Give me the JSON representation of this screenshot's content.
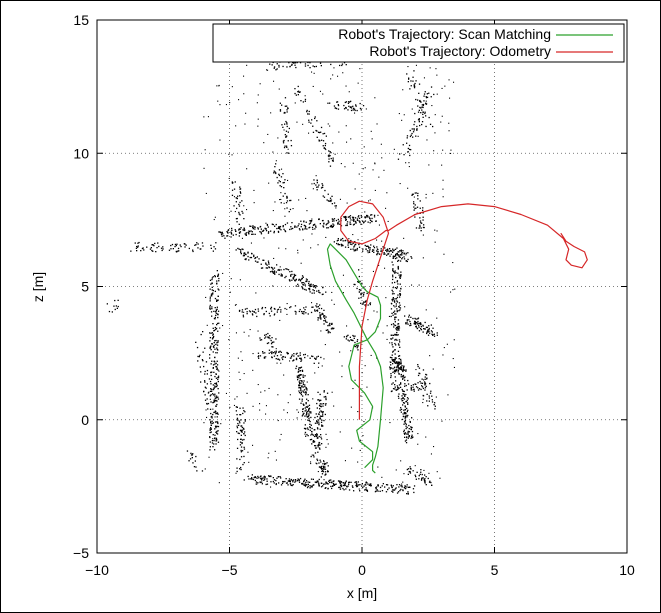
{
  "chart_data": {
    "type": "line",
    "title": "",
    "xlabel": "x [m]",
    "ylabel": "z [m]",
    "xlim": [
      -10,
      10
    ],
    "ylim": [
      -5,
      15
    ],
    "xticks": [
      "−10",
      "−5",
      "0",
      "5",
      "10"
    ],
    "yticks": [
      "−5",
      "0",
      "5",
      "10",
      "15"
    ],
    "xtick_values": [
      -10,
      -5,
      0,
      5,
      10
    ],
    "ytick_values": [
      -5,
      0,
      5,
      10,
      15
    ],
    "grid": true,
    "legend_position": "top-right",
    "series": [
      {
        "name": "Robot's Trajectory: Scan Matching",
        "color": "#2ca02c",
        "x": [
          0.1,
          0.4,
          0.4,
          -0.1,
          -0.2,
          0.3,
          0.4,
          0.1,
          -0.1,
          -0.4,
          -0.5,
          -0.3,
          0.2,
          0.5,
          0.7,
          0.7,
          0.6,
          0.2,
          0.0,
          -0.3,
          -0.6,
          -1.0,
          -1.2,
          -1.3,
          -1.2,
          -1.0,
          -0.6,
          -0.3,
          0.2,
          0.5,
          0.7,
          0.8,
          0.7,
          0.6,
          0.5,
          0.4,
          0.4,
          0.5
        ],
        "y": [
          -1.8,
          -1.5,
          -1.2,
          -0.8,
          -0.4,
          0.0,
          0.5,
          1.0,
          1.2,
          1.5,
          2.0,
          2.8,
          3.0,
          3.3,
          3.8,
          4.3,
          4.6,
          4.8,
          5.0,
          5.5,
          6.0,
          6.4,
          6.6,
          6.4,
          5.8,
          5.2,
          4.5,
          4.0,
          3.0,
          2.5,
          2.0,
          1.2,
          0.0,
          -1.0,
          -1.4,
          -1.7,
          -1.9,
          -2.0
        ]
      },
      {
        "name": "Robot's Trajectory: Odometry",
        "color": "#d62728",
        "x": [
          -0.1,
          -0.1,
          0.0,
          0.2,
          0.4,
          0.6,
          0.8,
          1.0,
          0.8,
          0.4,
          -0.1,
          -0.5,
          -0.8,
          -0.8,
          -0.5,
          0.0,
          0.5,
          0.9,
          1.0,
          1.3,
          2.0,
          3.0,
          4.0,
          5.0,
          6.0,
          7.0,
          7.6,
          7.8,
          7.7,
          7.9,
          8.3,
          8.5,
          8.4,
          8.0,
          7.7,
          7.5
        ],
        "y": [
          0.0,
          2.0,
          3.5,
          4.5,
          5.2,
          5.8,
          6.4,
          7.0,
          7.6,
          8.1,
          8.2,
          8.0,
          7.6,
          7.1,
          6.7,
          6.6,
          6.8,
          7.1,
          7.1,
          7.3,
          7.7,
          8.0,
          8.1,
          8.0,
          7.7,
          7.3,
          6.8,
          6.4,
          6.0,
          5.8,
          5.7,
          6.0,
          6.3,
          6.5,
          6.7,
          7.0
        ]
      }
    ],
    "background_scan": "dense black laser-scan point cloud forming building walls"
  }
}
